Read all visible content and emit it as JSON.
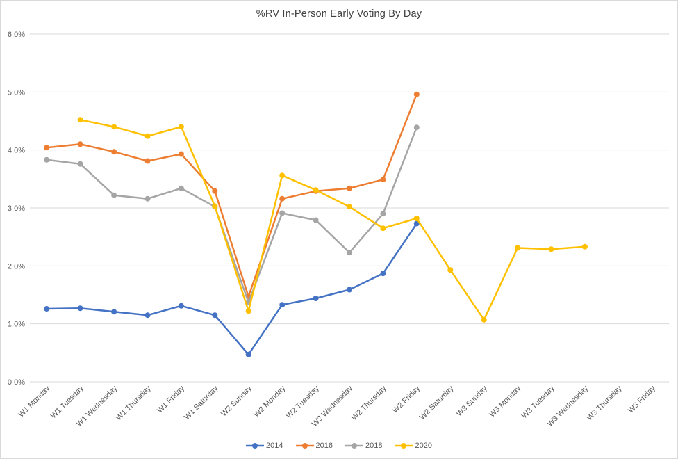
{
  "chart_data": {
    "type": "line",
    "title": "%RV In-Person Early Voting By Day",
    "categories": [
      "W1 Monday",
      "W1 Tuesday",
      "W1 Wednesday",
      "W1 Thursday",
      "W1 Friday",
      "W1 Saturday",
      "W2 Sunday",
      "W2 Monday",
      "W2 Tuesday",
      "W2 Wednesday",
      "W2 Thursday",
      "W2 Friday",
      "W2 Saturday",
      "W3 Sunday",
      "W3 Monday",
      "W3 Tuesday",
      "W3 Wednesday",
      "W3 Thursday",
      "W3 Friday"
    ],
    "series": [
      {
        "name": "2014",
        "color": "#4472C4",
        "values": [
          1.26,
          1.27,
          1.21,
          1.15,
          1.31,
          1.15,
          0.47,
          1.33,
          1.44,
          1.59,
          1.87,
          2.73,
          null,
          null,
          null,
          null,
          null,
          null,
          null
        ]
      },
      {
        "name": "2016",
        "color": "#ED7D31",
        "values": [
          4.04,
          4.1,
          3.97,
          3.81,
          3.93,
          3.29,
          1.47,
          3.16,
          3.29,
          3.34,
          3.49,
          4.96,
          null,
          null,
          null,
          null,
          null,
          null,
          null
        ]
      },
      {
        "name": "2018",
        "color": "#A5A5A5",
        "values": [
          3.83,
          3.76,
          3.22,
          3.16,
          3.34,
          3.02,
          1.37,
          2.91,
          2.79,
          2.23,
          2.9,
          4.39,
          null,
          null,
          null,
          null,
          null,
          null,
          null
        ]
      },
      {
        "name": "2020",
        "color": "#FFC000",
        "values": [
          null,
          4.52,
          4.4,
          4.24,
          4.4,
          3.03,
          1.22,
          3.56,
          3.31,
          3.02,
          2.65,
          2.82,
          1.93,
          1.07,
          2.31,
          2.29,
          2.33,
          null,
          null
        ]
      }
    ],
    "ylim": [
      0,
      6
    ],
    "ytick_labels": [
      "0.0%",
      "1.0%",
      "2.0%",
      "3.0%",
      "4.0%",
      "5.0%",
      "6.0%"
    ],
    "grid": true,
    "legend_position": "bottom",
    "gridline_color": "#d9d9d9",
    "axis_text_color": "#595959",
    "title_color": "#404040"
  }
}
